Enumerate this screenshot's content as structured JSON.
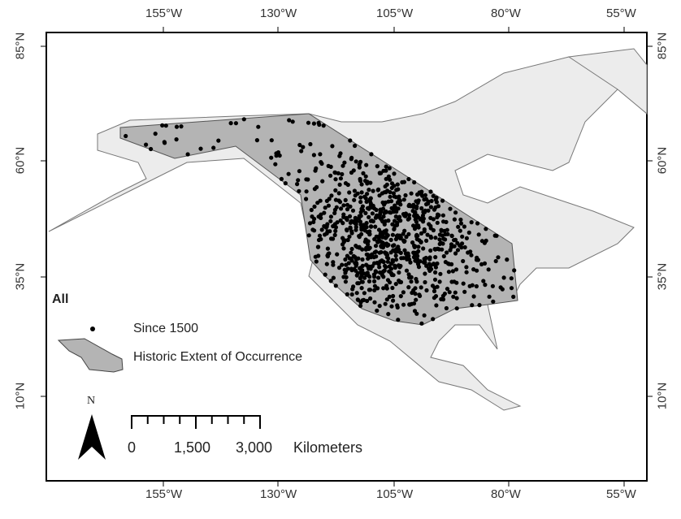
{
  "map": {
    "panel_label": "All",
    "longitude_labels": [
      "155°W",
      "130°W",
      "105°W",
      "80°W",
      "55°W"
    ],
    "latitude_labels": [
      "85°N",
      "60°N",
      "35°N",
      "10°N"
    ],
    "colors": {
      "land": "#ececec",
      "coast": "#777777",
      "range": "#b4b4b4",
      "points": "#000000",
      "frame": "#000000"
    }
  },
  "legend": {
    "points_label": "Since 1500",
    "range_label": "Historic Extent of Occurrence"
  },
  "north_arrow": {
    "label": "N"
  },
  "scale_bar": {
    "ticks": [
      "0",
      "1,500",
      "3,000"
    ],
    "unit": "Kilometers"
  }
}
